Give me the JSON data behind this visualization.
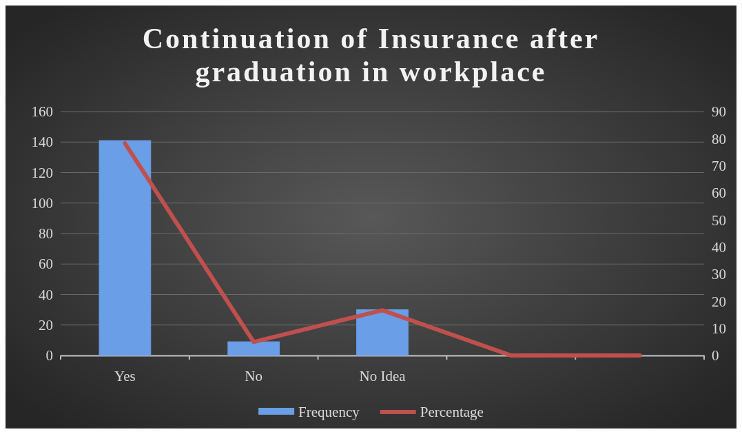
{
  "chart_data": {
    "type": "bar",
    "title": "Continuation of Insurance after graduation in workplace",
    "categories": [
      "Yes",
      "No",
      "No Idea",
      null,
      null
    ],
    "series": [
      {
        "name": "Frequency",
        "type": "bar",
        "color": "#6a9ee6",
        "values": [
          141,
          9,
          30,
          null,
          null
        ]
      },
      {
        "name": "Percentage",
        "type": "line",
        "axis": "y2",
        "color": "#c0504d",
        "values": [
          78.3,
          5,
          16.7,
          0,
          0
        ]
      }
    ],
    "ylim": [
      0,
      160
    ],
    "yticks": [
      0,
      20,
      40,
      60,
      80,
      100,
      120,
      140,
      160
    ],
    "y2lim": [
      0,
      90
    ],
    "y2ticks": [
      0,
      10,
      20,
      30,
      40,
      50,
      60,
      70,
      80,
      90
    ],
    "grid": "y",
    "legend": "bottom",
    "marker": "none"
  }
}
